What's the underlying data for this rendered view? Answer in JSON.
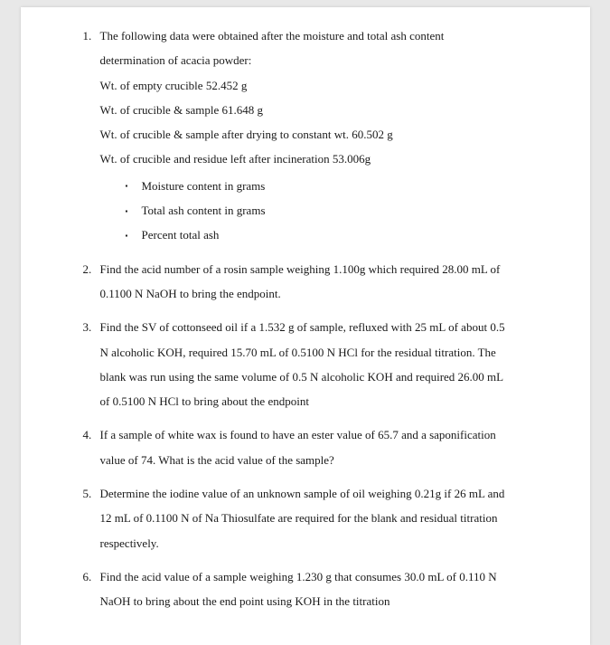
{
  "doc": {
    "font_family": "Times New Roman",
    "font_size_pt": 10,
    "line_height": 2.1,
    "bg_color": "#ffffff",
    "page_bg": "#e8e8e8",
    "text_color": "#1a1a1a"
  },
  "q1": {
    "l1": "The following data were obtained after the moisture and total ash content",
    "l2": "determination of acacia powder:",
    "l3": "Wt. of empty crucible 52.452 g",
    "l4": "Wt. of crucible & sample 61.648 g",
    "l5": "Wt. of crucible & sample after drying to constant wt. 60.502 g",
    "l6": "Wt. of crucible and residue left after incineration 53.006g",
    "b1": "Moisture content in grams",
    "b2": "Total ash content in grams",
    "b3": "Percent total ash"
  },
  "q2": {
    "l1": "Find the acid number of a rosin sample weighing 1.100g which required 28.00 mL of",
    "l2": "0.1100 N NaOH to bring the endpoint."
  },
  "q3": {
    "l1": "Find the SV of cottonseed oil if a 1.532 g of sample, refluxed with 25 mL of about 0.5",
    "l2": "N alcoholic KOH, required 15.70 mL of 0.5100 N HCl for the residual titration. The",
    "l3": "blank was run using the same volume of 0.5 N alcoholic KOH and required 26.00 mL",
    "l4": "of 0.5100 N HCl to bring about the endpoint"
  },
  "q4": {
    "l1": "If a sample of white wax is found to have an ester value of 65.7 and a saponification",
    "l2": "value of 74. What is the acid value of the sample?"
  },
  "q5": {
    "l1": "Determine the iodine value of an unknown sample of oil weighing 0.21g if 26 mL and",
    "l2": "12 mL of 0.1100 N of Na Thiosulfate are required for the blank and residual titration",
    "l3": "respectively."
  },
  "q6": {
    "l1": "Find the acid value of a sample weighing 1.230 g that consumes 30.0 mL of 0.110 N",
    "l2": "NaOH to bring about the end point using KOH in the titration"
  }
}
